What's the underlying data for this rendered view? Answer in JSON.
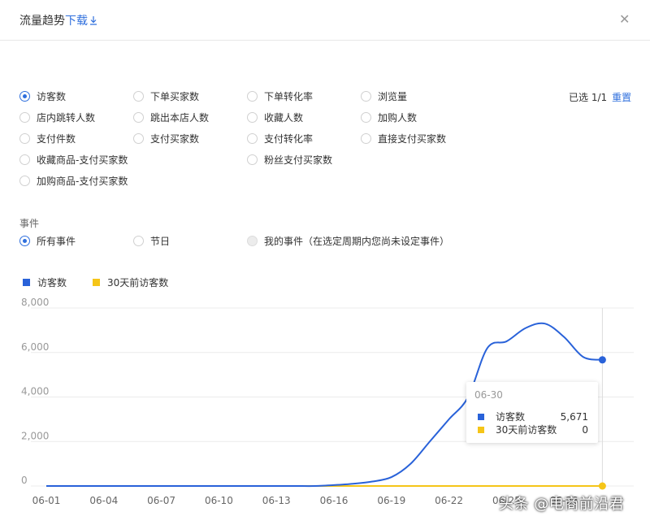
{
  "header": {
    "title": "流量趋势",
    "download_label": "下载",
    "download_icon": "download-icon",
    "close_icon": "close-icon"
  },
  "metrics": [
    {
      "label": "访客数",
      "checked": true
    },
    {
      "label": "下单买家数",
      "checked": false
    },
    {
      "label": "下单转化率",
      "checked": false
    },
    {
      "label": "浏览量",
      "checked": false
    },
    {
      "label": "店内跳转人数",
      "checked": false
    },
    {
      "label": "跳出本店人数",
      "checked": false
    },
    {
      "label": "收藏人数",
      "checked": false
    },
    {
      "label": "加购人数",
      "checked": false
    },
    {
      "label": "支付件数",
      "checked": false
    },
    {
      "label": "支付买家数",
      "checked": false
    },
    {
      "label": "支付转化率",
      "checked": false
    },
    {
      "label": "直接支付买家数",
      "checked": false
    },
    {
      "label": "收藏商品-支付买家数",
      "checked": false
    },
    {
      "label": "粉丝支付买家数",
      "checked": false
    },
    {
      "label": "加购商品-支付买家数",
      "checked": false
    }
  ],
  "selection": {
    "text": "已选 1/1",
    "reset_label": "重置"
  },
  "events": {
    "title": "事件",
    "options": [
      {
        "label": "所有事件",
        "checked": true
      },
      {
        "label": "节日",
        "checked": false
      },
      {
        "label": "我的事件（在选定周期内您尚未设定事件）",
        "checked": false,
        "disabled": true
      }
    ]
  },
  "colors": {
    "series1": "#2962d9",
    "series2": "#f5c518",
    "accent": "#2f6fdd"
  },
  "chart_data": {
    "type": "line",
    "x": [
      "06-01",
      "06-02",
      "06-03",
      "06-04",
      "06-05",
      "06-06",
      "06-07",
      "06-08",
      "06-09",
      "06-10",
      "06-11",
      "06-12",
      "06-13",
      "06-14",
      "06-15",
      "06-16",
      "06-17",
      "06-18",
      "06-19",
      "06-20",
      "06-21",
      "06-22",
      "06-23",
      "06-24",
      "06-25",
      "06-26",
      "06-27",
      "06-28",
      "06-29",
      "06-30"
    ],
    "x_tick_labels": [
      "06-01",
      "06-04",
      "06-07",
      "06-10",
      "06-13",
      "06-16",
      "06-19",
      "06-22",
      "06-25",
      "06-28"
    ],
    "y_tick_labels": [
      "0",
      "2,000",
      "4,000",
      "6,000",
      "8,000"
    ],
    "ylim": [
      0,
      8000
    ],
    "grid": true,
    "legend": "top-left",
    "series": [
      {
        "name": "访客数",
        "values": [
          0,
          0,
          0,
          0,
          0,
          0,
          0,
          0,
          0,
          0,
          0,
          0,
          0,
          0,
          0,
          40,
          100,
          200,
          400,
          1000,
          2000,
          3000,
          4000,
          6200,
          6500,
          7100,
          7300,
          6700,
          5800,
          5671
        ]
      },
      {
        "name": "30天前访客数",
        "values": [
          0,
          0,
          0,
          0,
          0,
          0,
          0,
          0,
          0,
          0,
          0,
          0,
          0,
          0,
          0,
          0,
          0,
          0,
          0,
          0,
          0,
          0,
          0,
          0,
          0,
          0,
          0,
          0,
          0,
          0
        ]
      }
    ]
  },
  "tooltip": {
    "date": "06-30",
    "rows": [
      {
        "name": "访客数",
        "value": "5,671"
      },
      {
        "name": "30天前访客数",
        "value": "0"
      }
    ]
  },
  "watermark": "头条 @电商前沿君"
}
